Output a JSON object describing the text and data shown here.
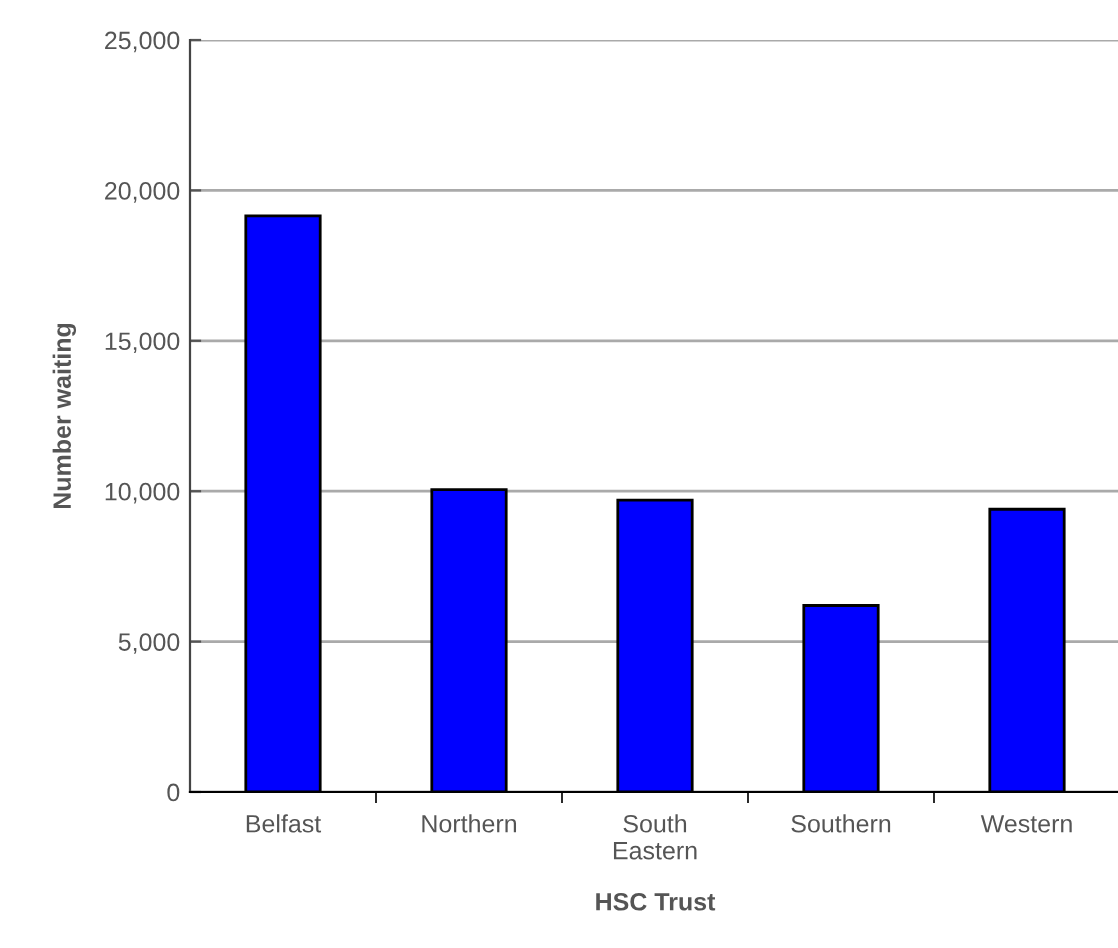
{
  "chart_data": {
    "type": "bar",
    "xlabel": "HSC Trust",
    "ylabel": "Number waiting",
    "categories": [
      "Belfast",
      "Northern",
      "South\nEastern",
      "Southern",
      "Western"
    ],
    "values": [
      19150,
      10050,
      9700,
      6200,
      9400
    ],
    "color": "#0000ff",
    "ylim": [
      0,
      25000
    ],
    "yticks": [
      {
        "value": 0,
        "label": "0"
      },
      {
        "value": 5000,
        "label": "5,000"
      },
      {
        "value": 10000,
        "label": "10,000"
      },
      {
        "value": 15000,
        "label": "15,000"
      },
      {
        "value": 20000,
        "label": "20,000"
      },
      {
        "value": 25000,
        "label": "25,000"
      }
    ],
    "grid": "y",
    "legend": false
  }
}
